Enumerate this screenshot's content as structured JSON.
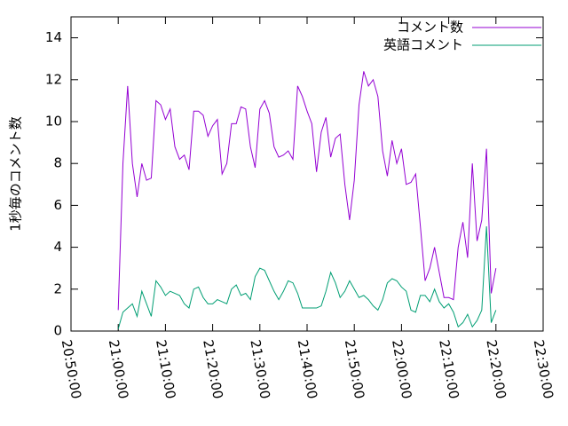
{
  "chart_data": {
    "type": "line",
    "ylabel": "1秒毎のコメント数",
    "x": [
      "21:00:00",
      "21:01:00",
      "21:02:00",
      "21:03:00",
      "21:04:00",
      "21:05:00",
      "21:06:00",
      "21:07:00",
      "21:08:00",
      "21:09:00",
      "21:10:00",
      "21:11:00",
      "21:12:00",
      "21:13:00",
      "21:14:00",
      "21:15:00",
      "21:16:00",
      "21:17:00",
      "21:18:00",
      "21:19:00",
      "21:20:00",
      "21:21:00",
      "21:22:00",
      "21:23:00",
      "21:24:00",
      "21:25:00",
      "21:26:00",
      "21:27:00",
      "21:28:00",
      "21:29:00",
      "21:30:00",
      "21:31:00",
      "21:32:00",
      "21:33:00",
      "21:34:00",
      "21:35:00",
      "21:36:00",
      "21:37:00",
      "21:38:00",
      "21:39:00",
      "21:40:00",
      "21:41:00",
      "21:42:00",
      "21:43:00",
      "21:44:00",
      "21:45:00",
      "21:46:00",
      "21:47:00",
      "21:48:00",
      "21:49:00",
      "21:50:00",
      "21:51:00",
      "21:52:00",
      "21:53:00",
      "21:54:00",
      "21:55:00",
      "21:56:00",
      "21:57:00",
      "21:58:00",
      "21:59:00",
      "22:00:00",
      "22:01:00",
      "22:02:00",
      "22:03:00",
      "22:04:00",
      "22:05:00",
      "22:06:00",
      "22:07:00",
      "22:08:00",
      "22:09:00",
      "22:10:00",
      "22:11:00",
      "22:12:00",
      "22:13:00",
      "22:14:00",
      "22:15:00",
      "22:16:00",
      "22:17:00",
      "22:18:00",
      "22:19:00",
      "22:20:00"
    ],
    "series": [
      {
        "name": "コメント数",
        "color": "#9400d3",
        "values": [
          1.0,
          8,
          11.7,
          8,
          6.4,
          8,
          7.2,
          7.3,
          11,
          10.8,
          10.1,
          10.6,
          8.8,
          8.2,
          8.4,
          7.7,
          10.5,
          10.5,
          10.3,
          9.3,
          9.8,
          10.1,
          7.5,
          8,
          9.9,
          9.9,
          10.7,
          10.6,
          8.8,
          7.8,
          10.6,
          11.0,
          10.4,
          8.8,
          8.3,
          8.4,
          8.6,
          8.2,
          11.7,
          11.2,
          10.5,
          9.9,
          7.6,
          9.5,
          10.2,
          8.3,
          9.2,
          9.4,
          7.0,
          5.3,
          7.2,
          10.8,
          12.4,
          11.7,
          12.0,
          11.2,
          8.6,
          7.4,
          9.1,
          8.0,
          8.7,
          7.0,
          7.1,
          7.5,
          5.0,
          2.4,
          3.0,
          4.0,
          2.8,
          1.6,
          1.6,
          1.5,
          4.0,
          5.2,
          3.5,
          8.0,
          4.3,
          5.3,
          8.7,
          1.8,
          3.0
        ]
      },
      {
        "name": "英語コメント",
        "color": "#009e73",
        "values": [
          0.1,
          0.9,
          1.1,
          1.3,
          0.7,
          1.9,
          1.3,
          0.7,
          2.4,
          2.1,
          1.7,
          1.9,
          1.8,
          1.7,
          1.3,
          1.1,
          2.0,
          2.1,
          1.6,
          1.3,
          1.3,
          1.5,
          1.4,
          1.3,
          2.0,
          2.2,
          1.7,
          1.8,
          1.5,
          2.6,
          3.0,
          2.9,
          2.4,
          1.9,
          1.5,
          1.9,
          2.4,
          2.3,
          1.8,
          1.1,
          1.1,
          1.1,
          1.1,
          1.2,
          1.9,
          2.8,
          2.3,
          1.6,
          1.9,
          2.4,
          2.0,
          1.6,
          1.7,
          1.5,
          1.2,
          1.0,
          1.5,
          2.3,
          2.5,
          2.4,
          2.1,
          1.9,
          1.0,
          0.9,
          1.7,
          1.7,
          1.4,
          2.0,
          1.4,
          1.1,
          1.3,
          0.9,
          0.2,
          0.4,
          0.8,
          0.2,
          0.5,
          1.0,
          5.0,
          0.4,
          1.0
        ]
      }
    ],
    "xlim": [
      "20:50:00",
      "22:30:00"
    ],
    "xticks": [
      "20:50:00",
      "21:00:00",
      "21:10:00",
      "21:20:00",
      "21:30:00",
      "21:40:00",
      "21:50:00",
      "22:00:00",
      "22:10:00",
      "22:20:00",
      "22:30:00"
    ],
    "ylim": [
      0,
      15
    ],
    "yticks": [
      0,
      2,
      4,
      6,
      8,
      10,
      12,
      14
    ],
    "legend": "top-right"
  }
}
